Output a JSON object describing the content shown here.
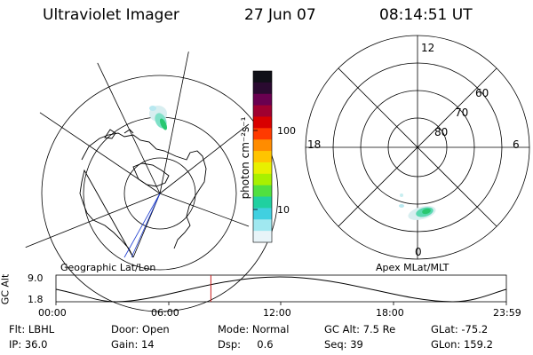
{
  "header": {
    "instrument": "Ultraviolet Imager",
    "date": "27 Jun 07",
    "time": "08:14:51 UT"
  },
  "left_map": {
    "label": "Geographic Lat/Lon"
  },
  "right_map": {
    "label": "Apex MLat/MLT",
    "mlt_labels": [
      "12",
      "18",
      "6",
      "0"
    ],
    "lat_labels": [
      "60",
      "70",
      "80"
    ]
  },
  "colorbar": {
    "unit_label": "photon cm⁻²s⁻¹",
    "tick_labels": [
      "100",
      "10"
    ],
    "colors": [
      "#101018",
      "#2a0a30",
      "#6a0050",
      "#a00030",
      "#d80000",
      "#ff3a00",
      "#ff8c00",
      "#ffc400",
      "#e8f000",
      "#a8f000",
      "#50e040",
      "#20d0a0",
      "#40d0e0",
      "#a0e8f0",
      "#e8f4f8"
    ]
  },
  "timeline": {
    "axis_label": "GC Alt",
    "y_max_label": "9.0",
    "y_min_label": "1.8",
    "ticks": [
      "00:00",
      "06:00",
      "12:00",
      "18:00",
      "23:59"
    ],
    "marker_fraction": 0.344
  },
  "info": {
    "row1": [
      "Flt: LBHL",
      "Door: Open",
      "Mode: Normal",
      "GC Alt: 7.5 Re",
      "GLat: -75.2"
    ],
    "row2": [
      "IP: 36.0",
      "Gain: 14",
      "Dsp:     0.6",
      "Seq: 39",
      "GLon: 159.2"
    ]
  }
}
